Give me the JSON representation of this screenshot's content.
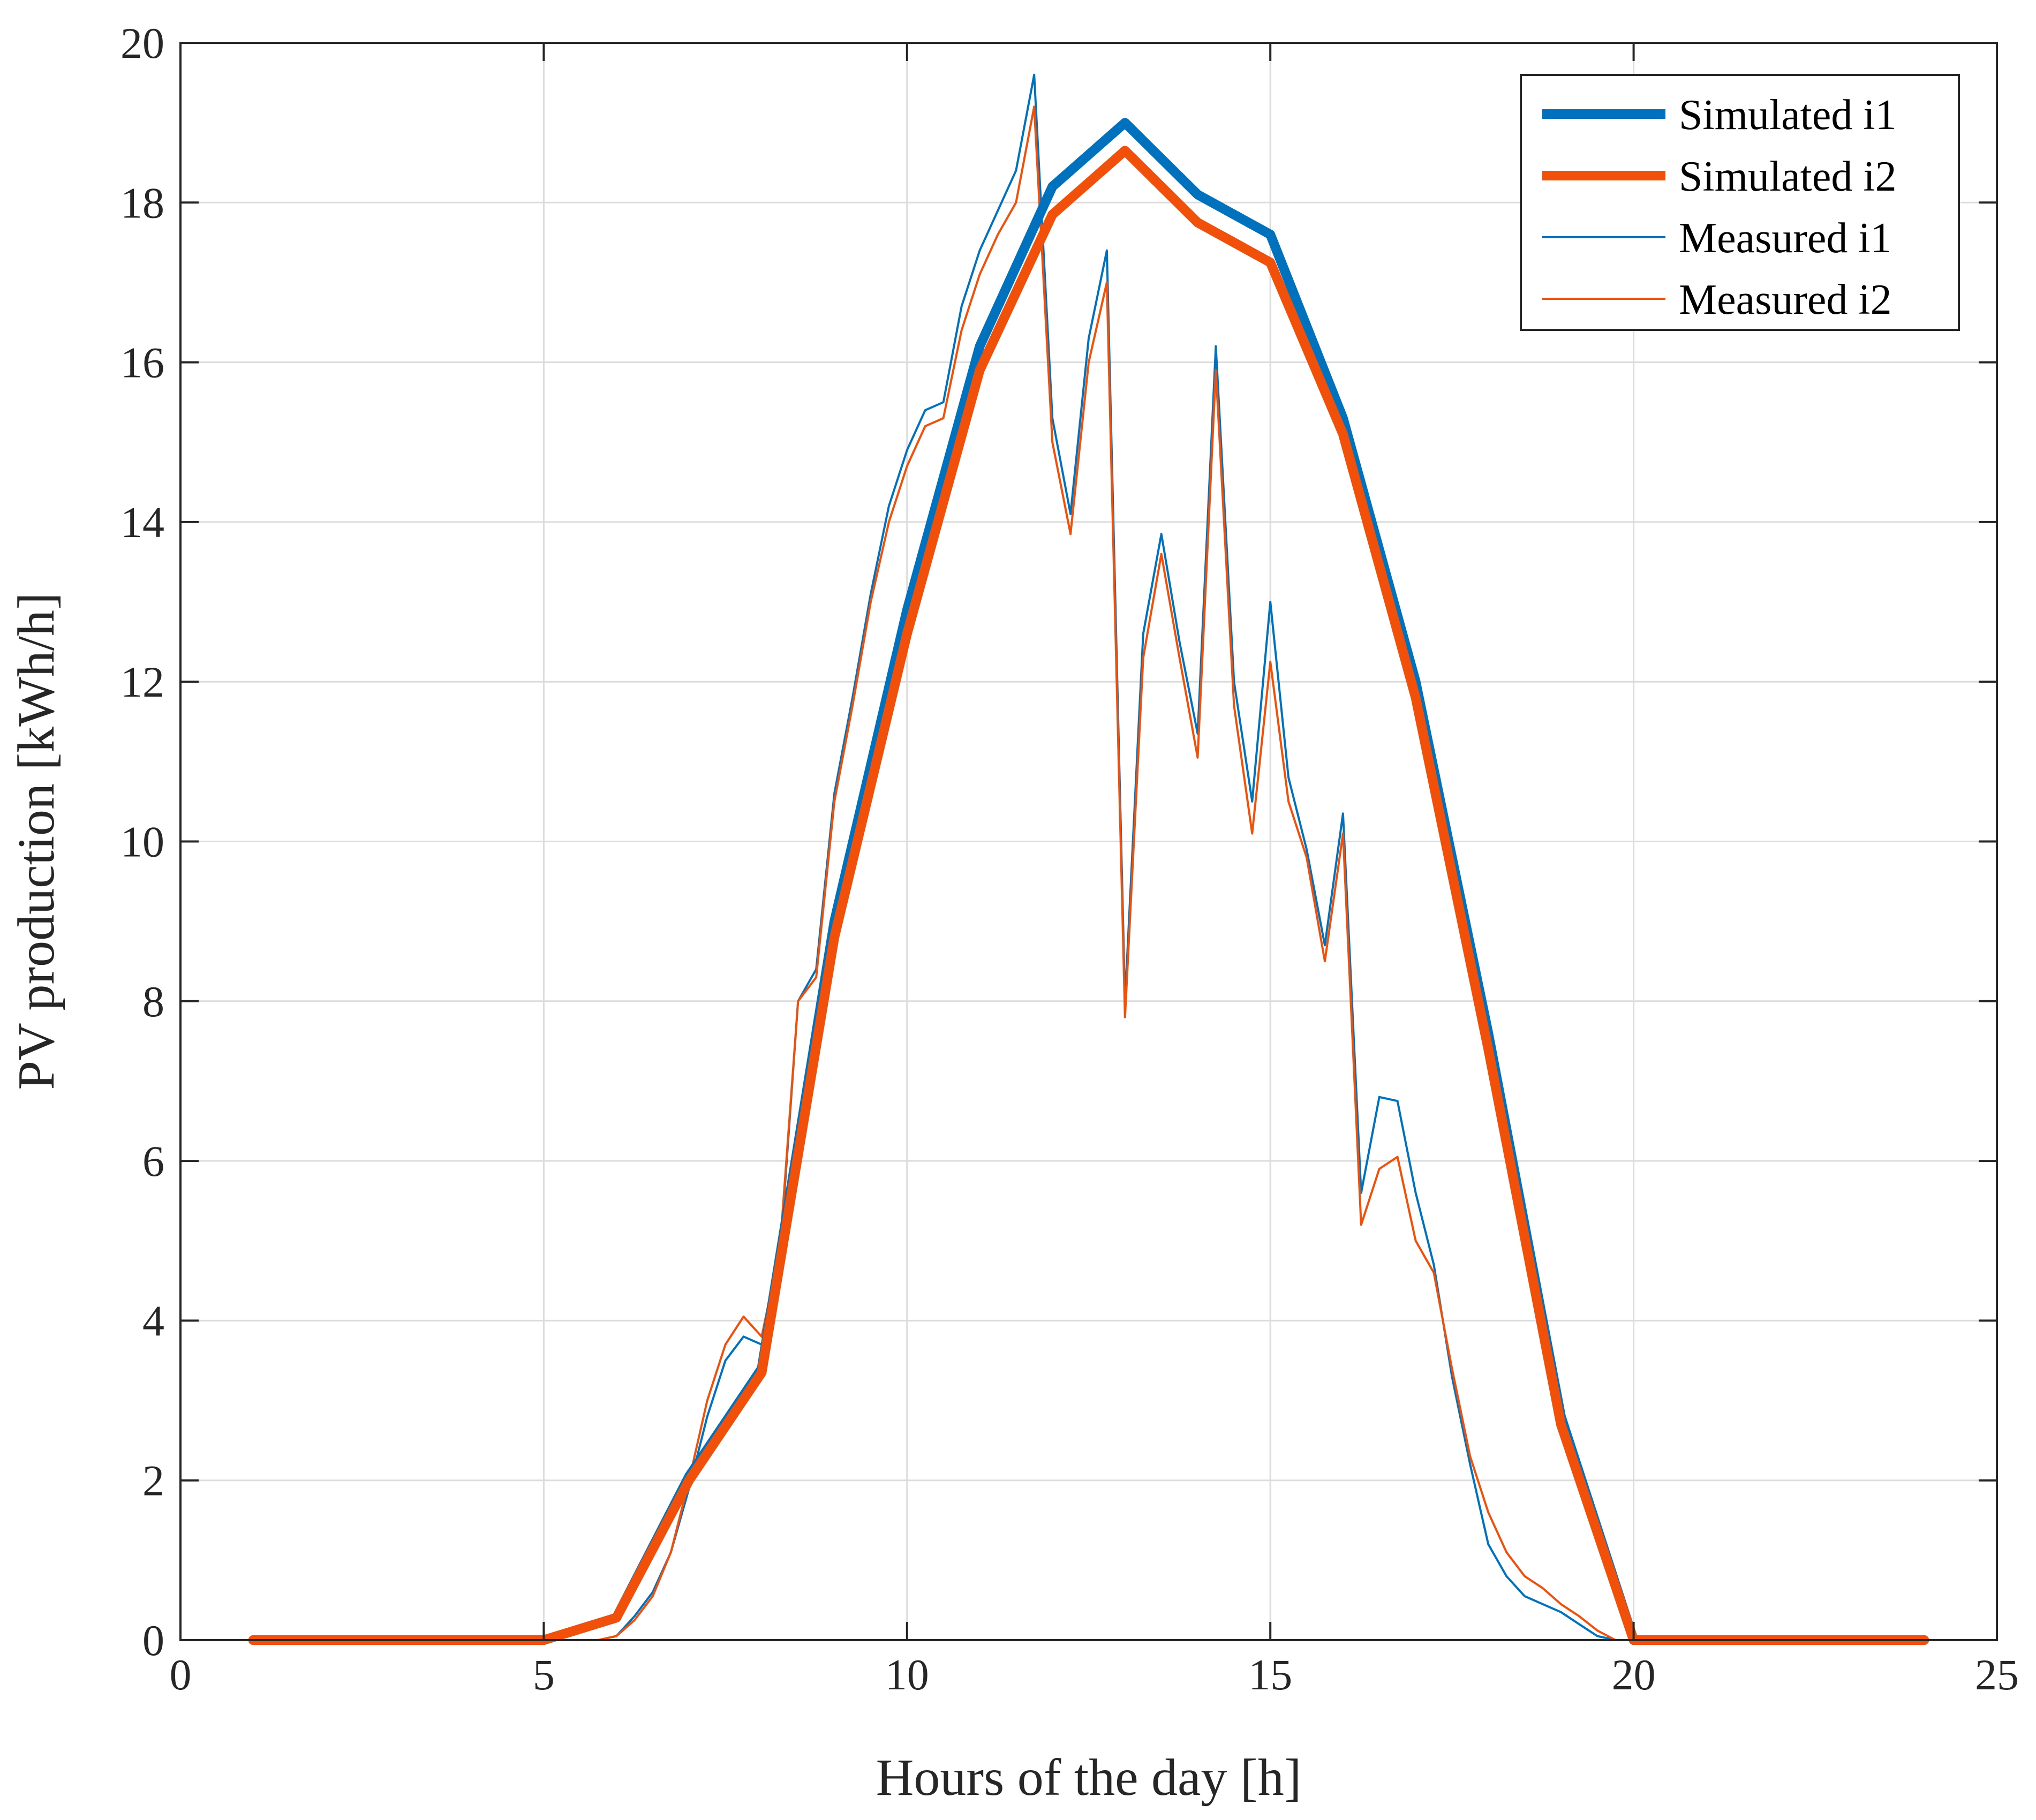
{
  "chart_data": {
    "type": "line",
    "title": "",
    "xlabel": "Hours of the day [h]",
    "ylabel": "PV production [kWh/h]",
    "xlim": [
      0,
      25
    ],
    "ylim": [
      0,
      20
    ],
    "xticks": [
      0,
      5,
      10,
      15,
      20,
      25
    ],
    "yticks": [
      0,
      2,
      4,
      6,
      8,
      10,
      12,
      14,
      16,
      18,
      20
    ],
    "grid": true,
    "legend_position": "top-right",
    "series": [
      {
        "name": "Simulated i1",
        "color": "#0072BD",
        "weight": "thick",
        "x": [
          1,
          2,
          3,
          4,
          5,
          6,
          7,
          8,
          9,
          10,
          11,
          12,
          13,
          14,
          15,
          16,
          17,
          18,
          19,
          20,
          21,
          22,
          23,
          24
        ],
        "y": [
          0,
          0,
          0,
          0,
          0,
          0.28,
          2.05,
          3.4,
          9.0,
          12.9,
          16.2,
          18.2,
          19.0,
          18.1,
          17.6,
          15.3,
          12.0,
          7.6,
          2.8,
          0,
          0,
          0,
          0,
          0
        ]
      },
      {
        "name": "Simulated i2",
        "color": "#F0500A",
        "weight": "thick",
        "x": [
          1,
          2,
          3,
          4,
          5,
          6,
          7,
          8,
          9,
          10,
          11,
          12,
          13,
          14,
          15,
          16,
          17,
          18,
          19,
          20,
          21,
          22,
          23,
          24
        ],
        "y": [
          0,
          0,
          0,
          0,
          0,
          0.28,
          2.0,
          3.35,
          8.8,
          12.6,
          15.9,
          17.85,
          18.65,
          17.75,
          17.25,
          15.1,
          11.8,
          7.4,
          2.7,
          0,
          0,
          0,
          0,
          0
        ]
      },
      {
        "name": "Measured i1",
        "color": "#0072BD",
        "weight": "thin",
        "x": [
          0.25,
          5.75,
          6.0,
          6.25,
          6.5,
          6.75,
          7.0,
          7.25,
          7.5,
          7.75,
          8.0,
          8.25,
          8.5,
          8.75,
          9.0,
          9.25,
          9.5,
          9.75,
          10.0,
          10.25,
          10.5,
          10.75,
          11.0,
          11.25,
          11.5,
          11.75,
          12.0,
          12.25,
          12.5,
          12.75,
          13.0,
          13.25,
          13.5,
          13.75,
          14.0,
          14.25,
          14.5,
          14.75,
          15.0,
          15.25,
          15.5,
          15.75,
          16.0,
          16.25,
          16.5,
          16.75,
          17.0,
          17.25,
          17.5,
          17.75,
          18.0,
          18.25,
          18.5,
          18.75,
          19.0,
          19.25,
          19.5,
          19.75,
          20.0
        ],
        "y": [
          0,
          0,
          0.05,
          0.3,
          0.6,
          1.1,
          1.9,
          2.8,
          3.5,
          3.8,
          3.7,
          4.8,
          8.0,
          8.4,
          10.6,
          11.8,
          13.1,
          14.2,
          14.9,
          15.4,
          15.5,
          16.7,
          17.4,
          17.9,
          18.4,
          19.6,
          15.3,
          14.1,
          16.3,
          17.4,
          8.0,
          12.6,
          13.85,
          12.5,
          11.35,
          16.2,
          12.0,
          10.5,
          13.0,
          10.8,
          9.9,
          8.7,
          10.35,
          5.6,
          6.8,
          6.75,
          5.6,
          4.7,
          3.3,
          2.2,
          1.2,
          0.8,
          0.55,
          0.45,
          0.35,
          0.2,
          0.05,
          0,
          0
        ]
      },
      {
        "name": "Measured i2",
        "color": "#F0500A",
        "weight": "thin",
        "x": [
          0.25,
          5.75,
          6.0,
          6.25,
          6.5,
          6.75,
          7.0,
          7.25,
          7.5,
          7.75,
          8.0,
          8.25,
          8.5,
          8.75,
          9.0,
          9.25,
          9.5,
          9.75,
          10.0,
          10.25,
          10.5,
          10.75,
          11.0,
          11.25,
          11.5,
          11.75,
          12.0,
          12.25,
          12.5,
          12.75,
          13.0,
          13.25,
          13.5,
          13.75,
          14.0,
          14.25,
          14.5,
          14.75,
          15.0,
          15.25,
          15.5,
          15.75,
          16.0,
          16.25,
          16.5,
          16.75,
          17.0,
          17.25,
          17.5,
          17.75,
          18.0,
          18.25,
          18.5,
          18.75,
          19.0,
          19.25,
          19.5,
          19.75,
          20.0
        ],
        "y": [
          0,
          0,
          0.05,
          0.25,
          0.55,
          1.1,
          2.0,
          3.0,
          3.7,
          4.05,
          3.8,
          4.9,
          8.0,
          8.3,
          10.5,
          11.7,
          13.0,
          14.0,
          14.7,
          15.2,
          15.3,
          16.4,
          17.1,
          17.6,
          18.0,
          19.2,
          15.0,
          13.85,
          16.0,
          17.0,
          7.8,
          12.3,
          13.6,
          12.3,
          11.05,
          15.9,
          11.7,
          10.1,
          12.25,
          10.5,
          9.8,
          8.5,
          10.1,
          5.2,
          5.9,
          6.05,
          5.0,
          4.6,
          3.4,
          2.3,
          1.6,
          1.1,
          0.8,
          0.65,
          0.45,
          0.3,
          0.12,
          0,
          0
        ]
      }
    ]
  }
}
